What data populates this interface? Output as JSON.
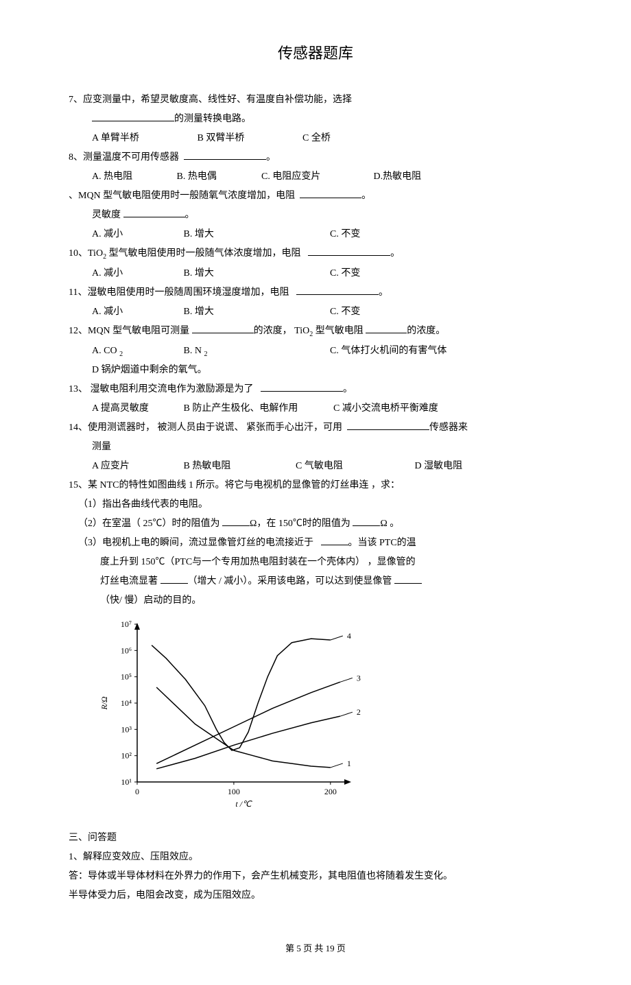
{
  "title": "传感器题库",
  "q7": {
    "line1": "7、应变测量中，希望灵敏度高、线性好、有温度自补偿功能，选择",
    "line2": "的测量转换电路。",
    "opts": {
      "A": "A 单臂半桥",
      "B": "B 双臂半桥",
      "C": "C 全桥"
    }
  },
  "q8": {
    "line1": "8、测量温度不可用传感器",
    "opts": {
      "A": "A. 热电阻",
      "B": "B. 热电偶",
      "C": "C. 电阻应变片",
      "D": "D.热敏电阻"
    }
  },
  "q9": {
    "line1a": "、MQN 型气敏电阻使用时一般随氧气浓度增加，电阻",
    "line1b": "。",
    "line2a": "灵敏度",
    "line2b": "。",
    "opts": {
      "A": "A. 减小",
      "B": "B. 增大",
      "C": "C. 不变"
    }
  },
  "q10": {
    "line1a": "10、TiO",
    "line1sub": "2",
    "line1b": " 型气敏电阻使用时一般随气体浓度增加，电阻",
    "line1c": "。",
    "opts": {
      "A": "A. 减小",
      "B": "B. 增大",
      "C": "C. 不变"
    }
  },
  "q11": {
    "line1a": "11、湿敏电阻使用时一般随周围环境湿度增加，电阻",
    "line1b": "。",
    "opts": {
      "A": "A. 减小",
      "B": "B. 增大",
      "C": "C. 不变"
    }
  },
  "q12": {
    "line1a": "12、MQN 型气敏电阻可测量",
    "line1b": "的浓度， TiO",
    "line1sub": "2",
    "line1c": " 型气敏电阻",
    "line1d": "的浓度。",
    "opts": {
      "A": "A. CO ",
      "Asub": "2",
      "B": "B. N ",
      "Bsub": "2",
      "C": "C. 气体打火机间的有害气体",
      "D": "D 锅炉烟道中剩余的氧气。"
    }
  },
  "q13": {
    "line1a": "13、 湿敏电阻利用交流电作为激励源是为了",
    "line1b": "。",
    "opts": {
      "A": "A 提高灵敏度",
      "B": "B 防止产生极化、电解作用",
      "C": "C 减小交流电桥平衡难度"
    }
  },
  "q14": {
    "line1a": "14、使用测谎器时， 被测人员由于说谎、 紧张而手心出汗，可用",
    "line1b": "传感器来",
    "line2": "测量",
    "opts": {
      "A": "A 应变片",
      "B": "B 热敏电阻",
      "C": "C 气敏电阻",
      "D": "D 湿敏电阻"
    }
  },
  "q15": {
    "line1": "15、某 NTC的特性如图曲线  1 所示。将它与电视机的显像管的灯丝串连 ，求：",
    "sub1": "（1）指出各曲线代表的电阻。",
    "sub2a": "（2）在室温（ 25℃）时的阻值为 ",
    "sub2b": "Ω，在 150℃时的阻值为 ",
    "sub2c": "Ω 。",
    "sub3a": "（3）电视机上电的瞬间，流过显像管灯丝的电流接近于 ",
    "sub3b": "。当该 PTC的温",
    "sub3c": "度上升到  150℃（PTC与一个专用加热电阻封装在一个壳体内）   ，显像管的",
    "sub3d": "灯丝电流显著 ",
    "sub3e": "（增大 / 减小）。采用该电路，可以达到使显像管 ",
    "sub3f": "（快/ 慢）启动的目的。"
  },
  "section3": {
    "heading": "三、问答题",
    "q1": "1、解释应变效应、压阻效应。",
    "a1": "答：导体或半导体材料在外界力的作用下，会产生机械变形，其电阻值也将随着发生变化。",
    "a2": "半导体受力后，电阻会改变，成为压阻效应。"
  },
  "footer": {
    "a": "第 ",
    "pg": "5",
    "b": " 页 共 ",
    "total": "19",
    "c": " 页"
  },
  "chart": {
    "type": "line",
    "xlabel": "t /℃",
    "ylabel": "R/Ω",
    "xlim": [
      0,
      220
    ],
    "ylim_log": [
      1,
      7
    ],
    "xticks": [
      0,
      100,
      200
    ],
    "yticks_labels": [
      "10¹",
      "10²",
      "10³",
      "10⁴",
      "10⁵",
      "10⁶",
      "10⁷"
    ],
    "background_color": "#ffffff",
    "axis_color": "#000000",
    "line_color": "#000000",
    "line_width": 1.5,
    "font_size": 12,
    "series": {
      "1": {
        "label": "1",
        "points": [
          [
            20,
            4.6
          ],
          [
            40,
            3.9
          ],
          [
            60,
            3.2
          ],
          [
            80,
            2.7
          ],
          [
            100,
            2.2
          ],
          [
            120,
            2.0
          ],
          [
            140,
            1.8
          ],
          [
            160,
            1.7
          ],
          [
            180,
            1.6
          ],
          [
            200,
            1.55
          ]
        ]
      },
      "2": {
        "label": "2",
        "points": [
          [
            20,
            1.5
          ],
          [
            60,
            1.9
          ],
          [
            100,
            2.4
          ],
          [
            140,
            2.85
          ],
          [
            180,
            3.25
          ],
          [
            210,
            3.5
          ]
        ]
      },
      "3": {
        "label": "3",
        "points": [
          [
            20,
            1.7
          ],
          [
            60,
            2.4
          ],
          [
            100,
            3.1
          ],
          [
            140,
            3.8
          ],
          [
            180,
            4.4
          ],
          [
            210,
            4.8
          ]
        ]
      },
      "4": {
        "label": "4",
        "points": [
          [
            15,
            6.2
          ],
          [
            30,
            5.7
          ],
          [
            50,
            4.9
          ],
          [
            70,
            3.9
          ],
          [
            82,
            3.0
          ],
          [
            90,
            2.5
          ],
          [
            98,
            2.2
          ],
          [
            106,
            2.3
          ],
          [
            115,
            2.9
          ],
          [
            125,
            4.0
          ],
          [
            135,
            5.0
          ],
          [
            145,
            5.8
          ],
          [
            160,
            6.3
          ],
          [
            180,
            6.45
          ],
          [
            200,
            6.4
          ]
        ]
      }
    }
  }
}
